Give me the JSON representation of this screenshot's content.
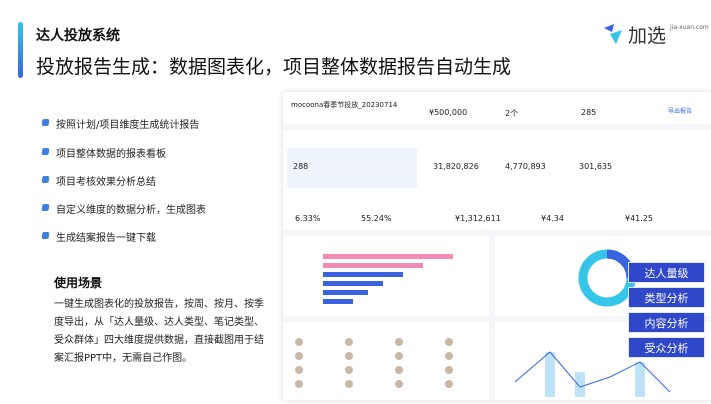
{
  "header": {
    "title": "达人投放系统",
    "subtitle": "投放报告生成：数据图表化，项目整体数据报告自动生成",
    "logo": "加选",
    "logo_url": "jia-xuan.com"
  },
  "features": [
    "按照计划/项目维度生成统计报告",
    "项目整体数据的报表看板",
    "项目考核效果分析总结",
    "自定义维度的数据分析，生成图表",
    "生成结案报告一键下载"
  ],
  "usage": {
    "title": "使用场景",
    "text": "一键生成图表化的投放报告，按周、按月、按季度导出，从「达人量级、达人类型、笔记类型、受众群体」四大维度提供数据，直接截图用于结案汇报PPT中，无需自己作图。"
  },
  "dashboard": {
    "project": "mocoona春季节投放_20230714",
    "top_values": [
      "¥500,000",
      "2个",
      "285"
    ],
    "export": "导出报告",
    "stats_row1": [
      "288",
      "31,820,826",
      "4,770,893",
      "301,635"
    ],
    "stats_row2": [
      "6.33%",
      "55.24%",
      "¥1,312,611",
      "¥4.34",
      "¥41.25"
    ]
  },
  "tags": [
    "达人量级",
    "类型分析",
    "内容分析",
    "受众分析"
  ]
}
